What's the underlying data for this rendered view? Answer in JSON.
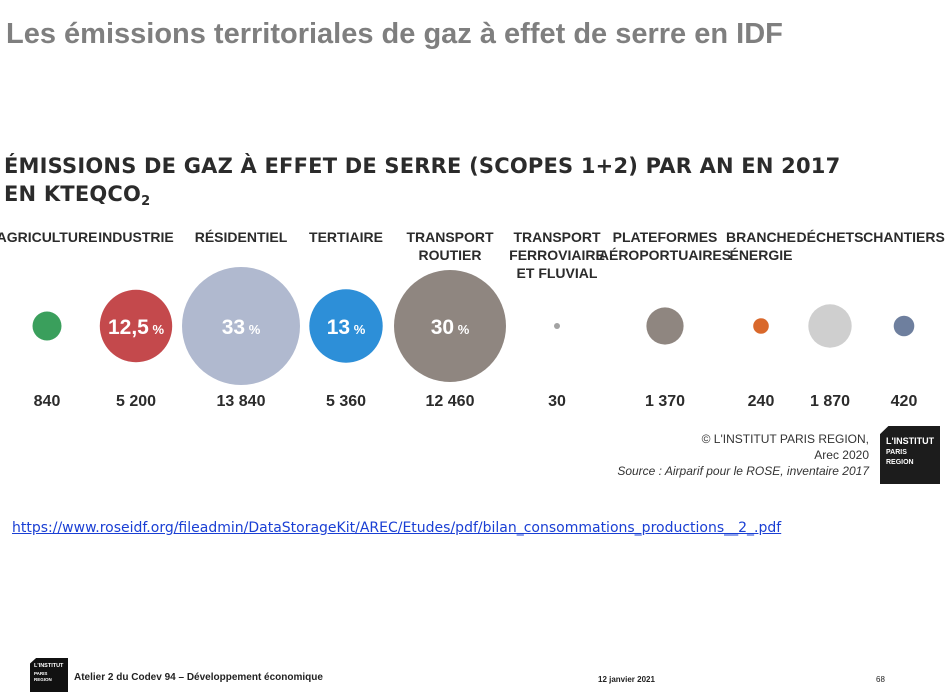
{
  "slide": {
    "title": "Les émissions territoriales de gaz à effet de serre en IDF",
    "link": "https://www.roseidf.org/fileadmin/DataStorageKit/AREC/Etudes/pdf/bilan_consommations_productions__2_.pdf",
    "footer": {
      "logo_line1": "L'INSTITUT",
      "logo_line2": "PARIS",
      "logo_line3": "REGION",
      "text": "Atelier 2 du Codev 94 – Développement économique",
      "date": "12 janvier 2021",
      "page": "68"
    }
  },
  "chart_data": {
    "type": "bubble",
    "title_line1": "ÉMISSIONS DE GAZ À EFFET DE SERRE (SCOPES 1+2) PAR AN EN 2017",
    "title_line2": "EN KTEQCO",
    "title_sub": "2",
    "unit": "ktéqCO2",
    "categories": [
      {
        "label": [
          "AGRICULTURE"
        ],
        "value": 840,
        "value_label": "840",
        "percent": null,
        "color": "#3a9f5c"
      },
      {
        "label": [
          "INDUSTRIE"
        ],
        "value": 5200,
        "value_label": "5 200",
        "percent": "12,5",
        "color": "#c4494c"
      },
      {
        "label": [
          "RÉSIDENTIEL"
        ],
        "value": 13840,
        "value_label": "13 840",
        "percent": "33",
        "color": "#b0b9cf"
      },
      {
        "label": [
          "TERTIAIRE"
        ],
        "value": 5360,
        "value_label": "5 360",
        "percent": "13",
        "color": "#2d8fd8"
      },
      {
        "label": [
          "TRANSPORT",
          "ROUTIER"
        ],
        "value": 12460,
        "value_label": "12 460",
        "percent": "30",
        "color": "#8f8680"
      },
      {
        "label": [
          "TRANSPORT",
          "FERROVIAIRE",
          "ET FLUVIAL"
        ],
        "value": 30,
        "value_label": "30",
        "percent": null,
        "color": "#a3a3a3"
      },
      {
        "label": [
          "PLATEFORMES",
          "AÉROPORTUAIRES"
        ],
        "value": 1370,
        "value_label": "1 370",
        "percent": null,
        "color": "#8f8680"
      },
      {
        "label": [
          "BRANCHE",
          "ÉNERGIE"
        ],
        "value": 240,
        "value_label": "240",
        "percent": null,
        "color": "#d9682b"
      },
      {
        "label": [
          "DÉCHETS"
        ],
        "value": 1870,
        "value_label": "1 870",
        "percent": null,
        "color": "#cfcfcf"
      },
      {
        "label": [
          "CHANTIERS"
        ],
        "value": 420,
        "value_label": "420",
        "percent": null,
        "color": "#6e7f9e"
      }
    ],
    "credit_line1": "© L'INSTITUT PARIS REGION,",
    "credit_line2": "Arec 2020",
    "source": "Source : Airparif pour le ROSE, inventaire 2017",
    "logo_line1": "L'INSTITUT",
    "logo_line2": "PARIS",
    "logo_line3": "REGION"
  }
}
